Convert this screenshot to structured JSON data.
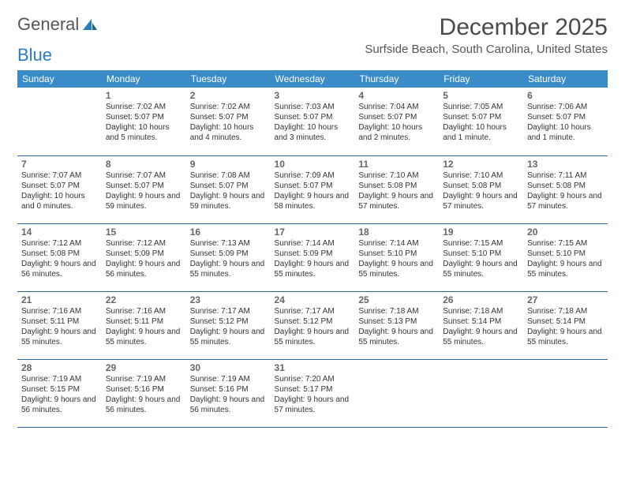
{
  "brand": {
    "part1": "General",
    "part2": "Blue"
  },
  "colors": {
    "header_bg": "#3b8bc9",
    "header_text": "#ffffff",
    "row_border": "#2d6aa3",
    "daynum": "#666666",
    "body_text": "#333333",
    "logo_gray": "#555555",
    "logo_blue": "#2b7bbf"
  },
  "page": {
    "title": "December 2025",
    "location": "Surfside Beach, South Carolina, United States"
  },
  "weekday_labels": [
    "Sunday",
    "Monday",
    "Tuesday",
    "Wednesday",
    "Thursday",
    "Friday",
    "Saturday"
  ],
  "first_weekday_index": 1,
  "days": [
    {
      "n": 1,
      "sunrise": "7:02 AM",
      "sunset": "5:07 PM",
      "daylight": "10 hours and 5 minutes."
    },
    {
      "n": 2,
      "sunrise": "7:02 AM",
      "sunset": "5:07 PM",
      "daylight": "10 hours and 4 minutes."
    },
    {
      "n": 3,
      "sunrise": "7:03 AM",
      "sunset": "5:07 PM",
      "daylight": "10 hours and 3 minutes."
    },
    {
      "n": 4,
      "sunrise": "7:04 AM",
      "sunset": "5:07 PM",
      "daylight": "10 hours and 2 minutes."
    },
    {
      "n": 5,
      "sunrise": "7:05 AM",
      "sunset": "5:07 PM",
      "daylight": "10 hours and 1 minute."
    },
    {
      "n": 6,
      "sunrise": "7:06 AM",
      "sunset": "5:07 PM",
      "daylight": "10 hours and 1 minute."
    },
    {
      "n": 7,
      "sunrise": "7:07 AM",
      "sunset": "5:07 PM",
      "daylight": "10 hours and 0 minutes."
    },
    {
      "n": 8,
      "sunrise": "7:07 AM",
      "sunset": "5:07 PM",
      "daylight": "9 hours and 59 minutes."
    },
    {
      "n": 9,
      "sunrise": "7:08 AM",
      "sunset": "5:07 PM",
      "daylight": "9 hours and 59 minutes."
    },
    {
      "n": 10,
      "sunrise": "7:09 AM",
      "sunset": "5:07 PM",
      "daylight": "9 hours and 58 minutes."
    },
    {
      "n": 11,
      "sunrise": "7:10 AM",
      "sunset": "5:08 PM",
      "daylight": "9 hours and 57 minutes."
    },
    {
      "n": 12,
      "sunrise": "7:10 AM",
      "sunset": "5:08 PM",
      "daylight": "9 hours and 57 minutes."
    },
    {
      "n": 13,
      "sunrise": "7:11 AM",
      "sunset": "5:08 PM",
      "daylight": "9 hours and 57 minutes."
    },
    {
      "n": 14,
      "sunrise": "7:12 AM",
      "sunset": "5:08 PM",
      "daylight": "9 hours and 56 minutes."
    },
    {
      "n": 15,
      "sunrise": "7:12 AM",
      "sunset": "5:09 PM",
      "daylight": "9 hours and 56 minutes."
    },
    {
      "n": 16,
      "sunrise": "7:13 AM",
      "sunset": "5:09 PM",
      "daylight": "9 hours and 55 minutes."
    },
    {
      "n": 17,
      "sunrise": "7:14 AM",
      "sunset": "5:09 PM",
      "daylight": "9 hours and 55 minutes."
    },
    {
      "n": 18,
      "sunrise": "7:14 AM",
      "sunset": "5:10 PM",
      "daylight": "9 hours and 55 minutes."
    },
    {
      "n": 19,
      "sunrise": "7:15 AM",
      "sunset": "5:10 PM",
      "daylight": "9 hours and 55 minutes."
    },
    {
      "n": 20,
      "sunrise": "7:15 AM",
      "sunset": "5:10 PM",
      "daylight": "9 hours and 55 minutes."
    },
    {
      "n": 21,
      "sunrise": "7:16 AM",
      "sunset": "5:11 PM",
      "daylight": "9 hours and 55 minutes."
    },
    {
      "n": 22,
      "sunrise": "7:16 AM",
      "sunset": "5:11 PM",
      "daylight": "9 hours and 55 minutes."
    },
    {
      "n": 23,
      "sunrise": "7:17 AM",
      "sunset": "5:12 PM",
      "daylight": "9 hours and 55 minutes."
    },
    {
      "n": 24,
      "sunrise": "7:17 AM",
      "sunset": "5:12 PM",
      "daylight": "9 hours and 55 minutes."
    },
    {
      "n": 25,
      "sunrise": "7:18 AM",
      "sunset": "5:13 PM",
      "daylight": "9 hours and 55 minutes."
    },
    {
      "n": 26,
      "sunrise": "7:18 AM",
      "sunset": "5:14 PM",
      "daylight": "9 hours and 55 minutes."
    },
    {
      "n": 27,
      "sunrise": "7:18 AM",
      "sunset": "5:14 PM",
      "daylight": "9 hours and 55 minutes."
    },
    {
      "n": 28,
      "sunrise": "7:19 AM",
      "sunset": "5:15 PM",
      "daylight": "9 hours and 56 minutes."
    },
    {
      "n": 29,
      "sunrise": "7:19 AM",
      "sunset": "5:16 PM",
      "daylight": "9 hours and 56 minutes."
    },
    {
      "n": 30,
      "sunrise": "7:19 AM",
      "sunset": "5:16 PM",
      "daylight": "9 hours and 56 minutes."
    },
    {
      "n": 31,
      "sunrise": "7:20 AM",
      "sunset": "5:17 PM",
      "daylight": "9 hours and 57 minutes."
    }
  ],
  "labels": {
    "sunrise_prefix": "Sunrise: ",
    "sunset_prefix": "Sunset: ",
    "daylight_prefix": "Daylight: "
  }
}
